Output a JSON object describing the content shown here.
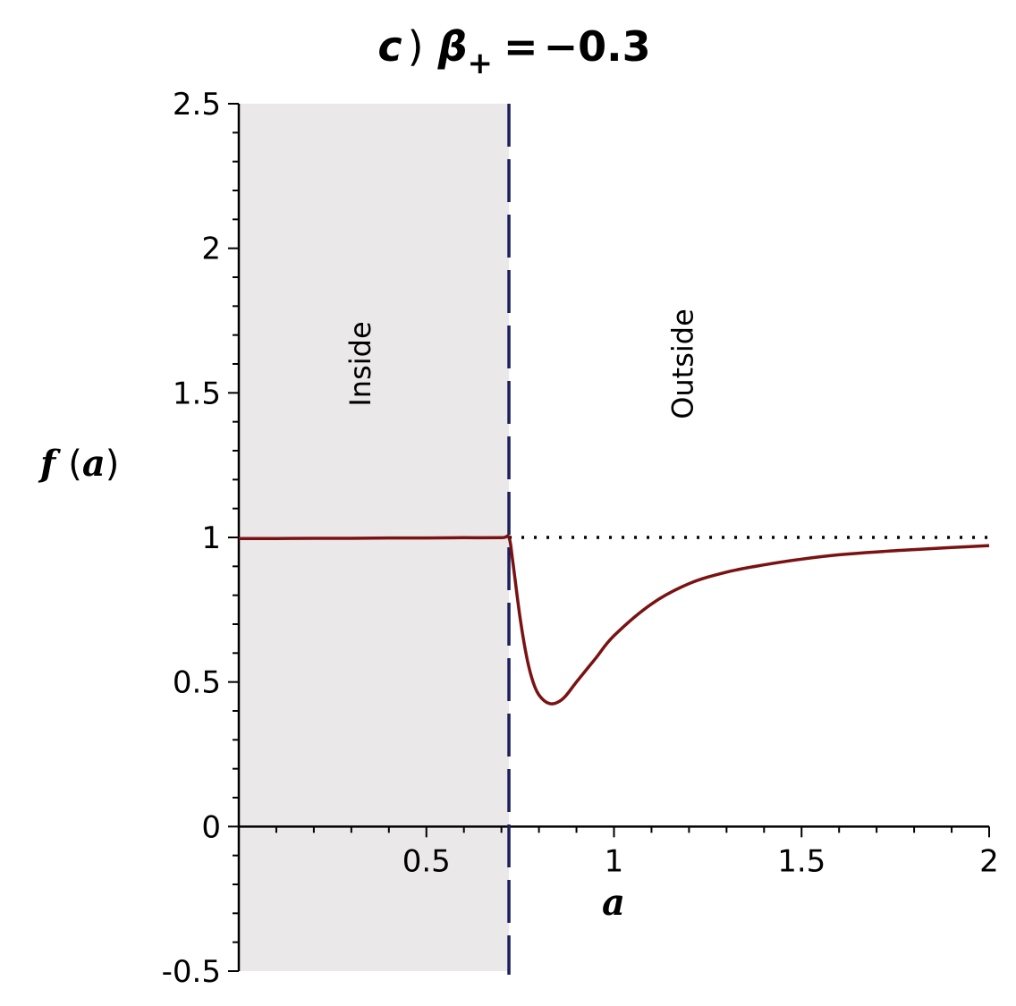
{
  "chart_data": {
    "type": "line",
    "title": {
      "prefix": "c",
      "paren": ")",
      "symbol": "β",
      "subscript": "+",
      "equals": "=",
      "value": "−0.3"
    },
    "xlabel": "a",
    "ylabel": {
      "func": "f",
      "open": "(",
      "var": "a",
      "close": ")"
    },
    "xlim": [
      0,
      2
    ],
    "ylim": [
      -0.5,
      2.5
    ],
    "x_ticks": [
      {
        "value": 0.5,
        "label": "0.5"
      },
      {
        "value": 1,
        "label": "1"
      },
      {
        "value": 1.5,
        "label": "1.5"
      },
      {
        "value": 2,
        "label": "2"
      }
    ],
    "y_ticks": [
      {
        "value": -0.5,
        "label": "-0.5"
      },
      {
        "value": 0,
        "label": "0"
      },
      {
        "value": 0.5,
        "label": "0.5"
      },
      {
        "value": 1,
        "label": "1"
      },
      {
        "value": 1.5,
        "label": "1.5"
      },
      {
        "value": 2,
        "label": "2"
      },
      {
        "value": 2.5,
        "label": "2.5"
      }
    ],
    "boundary_x": 0.72,
    "regions": [
      {
        "label": "Inside",
        "x_range": [
          0,
          0.72
        ],
        "shaded": true,
        "label_x": 0.35,
        "label_y": 1.6
      },
      {
        "label": "Outside",
        "x_range": [
          0.72,
          2
        ],
        "shaded": false,
        "label_x": 1.21,
        "label_y": 1.6
      }
    ],
    "reference_line": {
      "y": 1,
      "x_range": [
        0.72,
        2
      ],
      "style": "dotted"
    },
    "series": [
      {
        "x": [
          0,
          0.1,
          0.2,
          0.3,
          0.4,
          0.5,
          0.6,
          0.7,
          0.72,
          0.73,
          0.75,
          0.77,
          0.79,
          0.81,
          0.83,
          0.85,
          0.87,
          0.9,
          0.95,
          1.0,
          1.1,
          1.2,
          1.3,
          1.4,
          1.5,
          1.6,
          1.7,
          1.8,
          1.9,
          2.0
        ],
        "y": [
          0.996,
          0.996,
          0.997,
          0.997,
          0.998,
          0.998,
          0.999,
          0.999,
          1.0,
          0.92,
          0.72,
          0.57,
          0.48,
          0.44,
          0.425,
          0.43,
          0.45,
          0.5,
          0.58,
          0.66,
          0.77,
          0.84,
          0.88,
          0.905,
          0.925,
          0.94,
          0.95,
          0.958,
          0.965,
          0.972
        ]
      }
    ],
    "colors": {
      "curve": "#7a1212",
      "boundary": "#1b1f5e",
      "shade": "#ebe8ea",
      "axis": "#000000",
      "reference": "#000000"
    }
  }
}
